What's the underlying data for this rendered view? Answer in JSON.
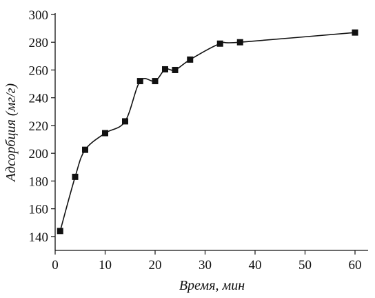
{
  "chart_data": {
    "type": "scatter",
    "title": "",
    "xlabel": "Время, мин",
    "ylabel": "Адсорбция (мг/г)",
    "xlim": [
      0,
      60
    ],
    "ylim": [
      130,
      300
    ],
    "x_ticks": [
      0,
      10,
      20,
      30,
      40,
      50,
      60
    ],
    "y_ticks": [
      140,
      160,
      180,
      200,
      220,
      240,
      260,
      280,
      300
    ],
    "grid": false,
    "legend": "none",
    "series": [
      {
        "marker": "square",
        "line": "smooth",
        "points": [
          {
            "x": 1,
            "y": 144
          },
          {
            "x": 4,
            "y": 183
          },
          {
            "x": 6,
            "y": 202.5
          },
          {
            "x": 10,
            "y": 214.5
          },
          {
            "x": 14,
            "y": 223
          },
          {
            "x": 17,
            "y": 252
          },
          {
            "x": 20,
            "y": 252
          },
          {
            "x": 22,
            "y": 260.5
          },
          {
            "x": 24,
            "y": 260
          },
          {
            "x": 27,
            "y": 267.5
          },
          {
            "x": 33,
            "y": 279
          },
          {
            "x": 37,
            "y": 280
          },
          {
            "x": 60,
            "y": 287
          }
        ]
      }
    ],
    "colors": {
      "marks": "#111111",
      "axes": "#111111"
    }
  }
}
